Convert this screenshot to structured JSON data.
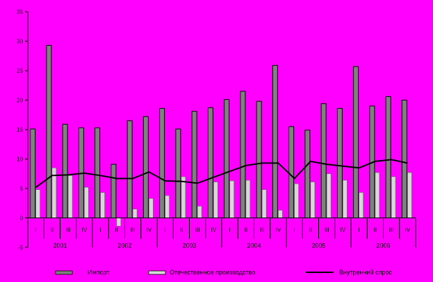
{
  "chart_data": {
    "type": "bar",
    "ylim": [
      -5,
      35
    ],
    "yticks": [
      -5,
      0,
      5,
      10,
      15,
      20,
      25,
      30,
      35
    ],
    "grid": false,
    "legend_position": "bottom",
    "quarter_labels": [
      "I",
      "II",
      "III",
      "IV",
      "I",
      "II",
      "III",
      "IV",
      "I",
      "II",
      "III",
      "IV",
      "I",
      "II",
      "III",
      "IV",
      "I",
      "II",
      "III",
      "IV",
      "I",
      "II",
      "III",
      "IV"
    ],
    "years": [
      "2001",
      "2002",
      "2003",
      "2004",
      "2005",
      "2006"
    ],
    "series": [
      {
        "name": "Импорт",
        "kind": "bar",
        "color": "#808080",
        "values": [
          15.1,
          29.3,
          15.9,
          15.3,
          15.3,
          9.1,
          16.5,
          17.2,
          18.6,
          15.1,
          18.1,
          18.7,
          20.1,
          21.5,
          19.8,
          25.9,
          15.5,
          14.9,
          19.4,
          18.6,
          25.7,
          19.0,
          20.6,
          20.0
        ]
      },
      {
        "name": "Отечественное производство",
        "kind": "bar",
        "color": "#d8d8d8",
        "values": [
          4.8,
          8.5,
          7.2,
          5.2,
          4.3,
          -1.4,
          1.5,
          3.3,
          3.8,
          7.0,
          2.0,
          6.1,
          6.3,
          6.4,
          4.8,
          1.3,
          5.8,
          6.1,
          7.5,
          6.4,
          4.3,
          7.7,
          7.0,
          7.7
        ]
      },
      {
        "name": "Внутренний спрос",
        "kind": "line",
        "color": "#000000",
        "values": [
          5.2,
          7.2,
          7.3,
          7.6,
          7.2,
          6.7,
          6.7,
          7.8,
          6.3,
          6.2,
          5.9,
          6.9,
          7.9,
          8.9,
          9.3,
          9.3,
          6.7,
          9.6,
          9.1,
          8.8,
          8.5,
          9.6,
          9.9,
          9.3
        ]
      }
    ]
  }
}
